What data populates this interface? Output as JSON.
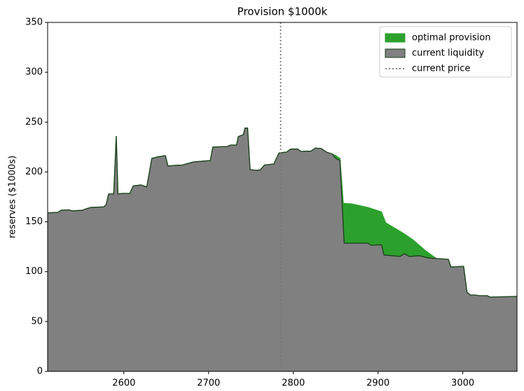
{
  "chart_data": {
    "type": "area",
    "title": "Provision $1000k",
    "ylabel": "reserves ($1000s)",
    "xlim": [
      2510,
      3064
    ],
    "ylim": [
      0,
      350
    ],
    "xticks": [
      2600,
      2700,
      2800,
      2900,
      3000
    ],
    "yticks": [
      0,
      50,
      100,
      150,
      200,
      250,
      300,
      350
    ],
    "legend": "upper right",
    "series": [
      {
        "name": "optimal provision",
        "color": "#2ca02c",
        "x": [
          2510,
          2522,
          2526,
          2535,
          2539,
          2551,
          2555,
          2561,
          2576,
          2579,
          2582,
          2588,
          2591,
          2593,
          2598,
          2607,
          2611,
          2620,
          2627,
          2633,
          2639,
          2649,
          2652,
          2660,
          2669,
          2682,
          2702,
          2705,
          2722,
          2726,
          2733,
          2735,
          2741,
          2743,
          2746,
          2749,
          2756,
          2761,
          2766,
          2777,
          2783,
          2792,
          2797,
          2805,
          2809,
          2821,
          2826,
          2833,
          2839,
          2846,
          2850,
          2855,
          2859,
          2869,
          2888,
          2904,
          2909,
          2930,
          2941,
          2956,
          2970,
          2983,
          2986,
          3001,
          3005,
          3009,
          3015,
          3019,
          3029,
          3032,
          3064
        ],
        "values": [
          159,
          159.5,
          161.6,
          162,
          161,
          161.6,
          163,
          164.4,
          165,
          167,
          178,
          178,
          236,
          178,
          178.5,
          178.5,
          186,
          187,
          185,
          213.6,
          215,
          216.4,
          206,
          206.6,
          207,
          210,
          211.5,
          225,
          225.6,
          227,
          227,
          235.5,
          237.5,
          244,
          244,
          202.4,
          201.7,
          202,
          207,
          208,
          219,
          220,
          223,
          223,
          220.6,
          221,
          224,
          223.5,
          220,
          218,
          216.4,
          213.6,
          168.6,
          168,
          164.4,
          160,
          149,
          138.4,
          132,
          121,
          112.4,
          112.4,
          104.7,
          105.4,
          79.4,
          76.6,
          76.6,
          75.9,
          75.9,
          74.5,
          75.2
        ]
      },
      {
        "name": "current liquidity",
        "color": "#808080",
        "edge": "#1a3d1a",
        "x": [
          2510,
          2522,
          2526,
          2535,
          2539,
          2551,
          2555,
          2561,
          2576,
          2579,
          2582,
          2588,
          2591,
          2593,
          2598,
          2607,
          2611,
          2620,
          2627,
          2633,
          2639,
          2649,
          2652,
          2660,
          2669,
          2682,
          2702,
          2705,
          2722,
          2726,
          2733,
          2735,
          2741,
          2743,
          2746,
          2749,
          2756,
          2761,
          2766,
          2777,
          2783,
          2792,
          2797,
          2805,
          2809,
          2821,
          2826,
          2833,
          2839,
          2846,
          2850,
          2855,
          2860,
          2888,
          2892,
          2904,
          2907,
          2917,
          2926,
          2931,
          2937,
          2949,
          2959,
          2983,
          2986,
          3001,
          3005,
          3009,
          3015,
          3019,
          3029,
          3032,
          3064
        ],
        "values": [
          159,
          159.5,
          161.6,
          162,
          161,
          161.6,
          163,
          164.4,
          165,
          167,
          178,
          178,
          236,
          178,
          178.5,
          178.5,
          186,
          187,
          185,
          213.6,
          215,
          216.4,
          206,
          206.6,
          207,
          210,
          211.5,
          225,
          225.6,
          227,
          227,
          235.5,
          237.5,
          244,
          244,
          202.4,
          201.7,
          202,
          207,
          208,
          219,
          220,
          223,
          223,
          220.6,
          221,
          224,
          223.5,
          220,
          218,
          213.6,
          211.5,
          128.6,
          128.6,
          126.5,
          127,
          116.7,
          116,
          115.3,
          118,
          115.3,
          116,
          113.8,
          112.4,
          104.7,
          105.4,
          79.4,
          76.6,
          76.6,
          75.9,
          75.9,
          74.5,
          75.2
        ]
      }
    ],
    "current_price": {
      "name": "current price",
      "x": 2785,
      "color": "#777777"
    }
  }
}
